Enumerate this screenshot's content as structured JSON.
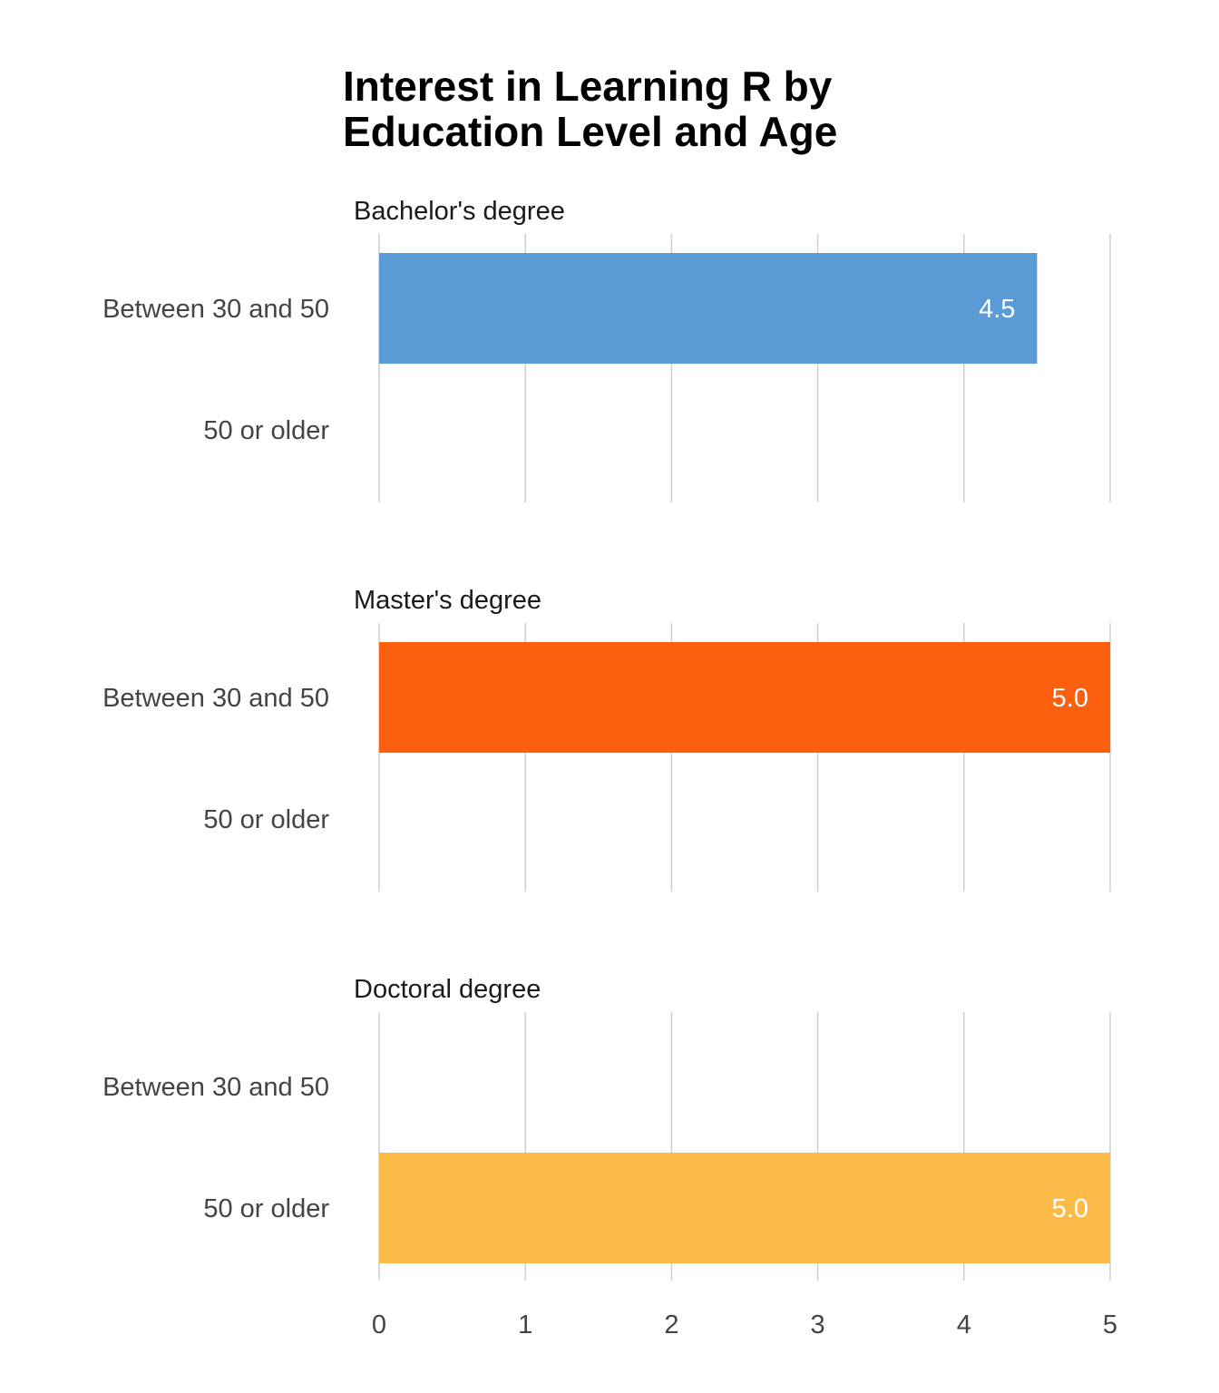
{
  "title_lines": [
    "Interest in Learning R by",
    "Education Level and Age"
  ],
  "chart_data": {
    "type": "bar",
    "orientation": "horizontal",
    "title": "Interest in Learning R by Education Level and Age",
    "xlabel": "",
    "ylabel": "",
    "xlim": [
      0,
      5
    ],
    "x_ticks": [
      "0",
      "1",
      "2",
      "3",
      "4",
      "5"
    ],
    "grid": true,
    "categories": [
      "Between 30 and 50",
      "50 or older"
    ],
    "facets": [
      {
        "name": "Bachelor's degree",
        "color": "#5B9BD5",
        "values": [
          4.5,
          null
        ],
        "labels": [
          "4.5",
          ""
        ]
      },
      {
        "name": "Master's degree",
        "color": "#FC5F0D",
        "values": [
          5.0,
          null
        ],
        "labels": [
          "5.0",
          ""
        ]
      },
      {
        "name": "Doctoral degree",
        "color": "#FCBB48",
        "values": [
          null,
          5.0
        ],
        "labels": [
          "",
          "5.0"
        ]
      }
    ]
  }
}
